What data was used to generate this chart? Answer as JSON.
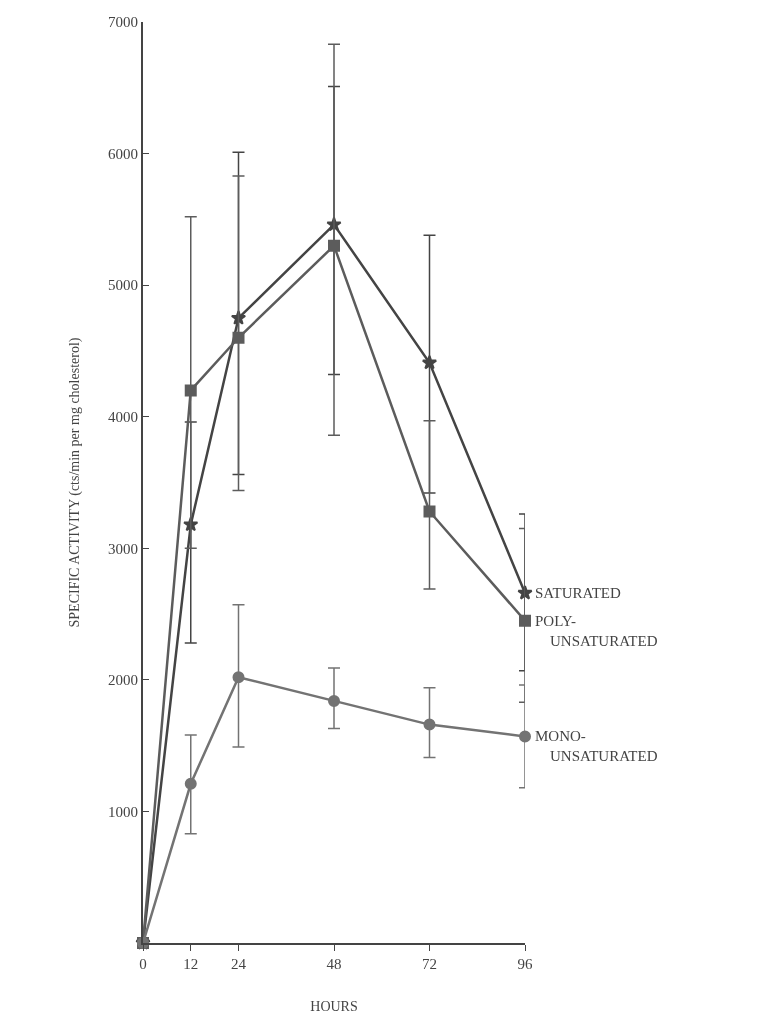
{
  "chart_data": {
    "type": "line",
    "xlabel": "HOURS",
    "ylabel": "SPECIFIC ACTIVITY (cts/min per mg cholesterol)",
    "x": [
      0,
      12,
      24,
      48,
      72,
      96
    ],
    "xlim": [
      0,
      96
    ],
    "xticks": [
      0,
      12,
      24,
      48,
      72,
      96
    ],
    "ylim": [
      0,
      7000
    ],
    "yticks": [
      1000,
      2000,
      3000,
      4000,
      5000,
      6000,
      7000
    ],
    "legend": false,
    "series": [
      {
        "name": "SATURATED",
        "color": "#444444",
        "marker": "star",
        "values": [
          0,
          3180,
          4750,
          5460,
          4410,
          2660
        ],
        "errors": [
          null,
          [
            2280,
            3960
          ],
          [
            3560,
            6010
          ],
          [
            4320,
            6510
          ],
          [
            3420,
            5380
          ],
          [
            2070,
            3260
          ]
        ]
      },
      {
        "name": "POLY-\nUNSATURATED",
        "color": "#5c5c5c",
        "marker": "square",
        "values": [
          0,
          4200,
          4600,
          5300,
          3280,
          2450
        ],
        "errors": [
          null,
          [
            3000,
            5520
          ],
          [
            3440,
            5830
          ],
          [
            3860,
            6830
          ],
          [
            2690,
            3970
          ],
          [
            1830,
            3150
          ]
        ]
      },
      {
        "name": "MONO-\nUNSATURATED",
        "color": "#737373",
        "marker": "circle",
        "values": [
          0,
          1210,
          2020,
          1840,
          1660,
          1570
        ],
        "errors": [
          null,
          [
            830,
            1580
          ],
          [
            1490,
            2570
          ],
          [
            1630,
            2090
          ],
          [
            1410,
            1940
          ],
          [
            1180,
            1960
          ]
        ]
      }
    ]
  }
}
